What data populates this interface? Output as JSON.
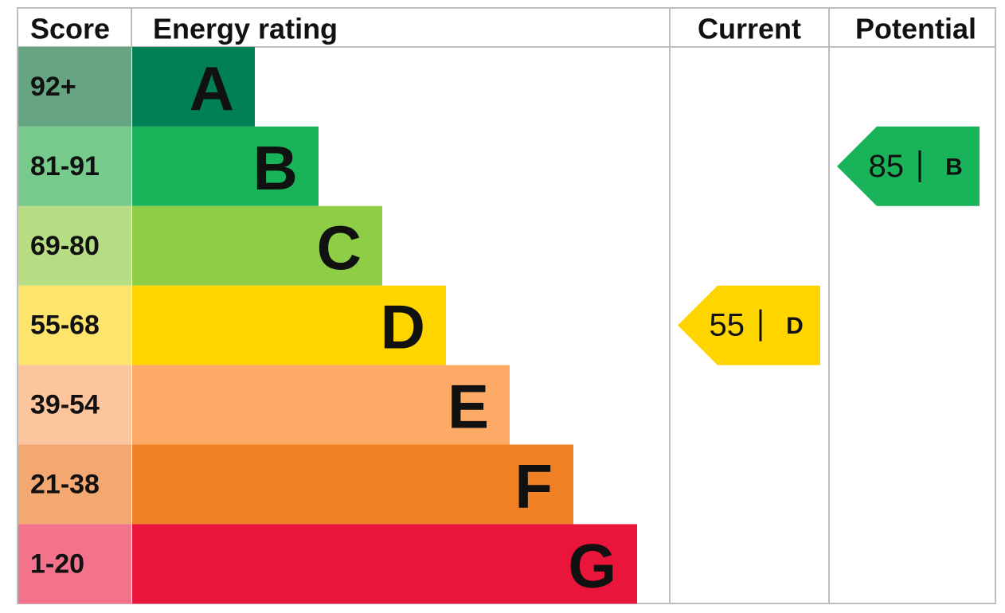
{
  "header": {
    "score": "Score",
    "energy_rating": "Energy rating",
    "current": "Current",
    "potential": "Potential"
  },
  "bands": [
    {
      "score": "92+",
      "rating": "A",
      "score_color": "#67a482",
      "bar_color": "#008054"
    },
    {
      "score": "81-91",
      "rating": "B",
      "score_color": "#75ca8c",
      "bar_color": "#19b459"
    },
    {
      "score": "69-80",
      "rating": "C",
      "score_color": "#b6dd84",
      "bar_color": "#8dce46"
    },
    {
      "score": "55-68",
      "rating": "D",
      "score_color": "#fde46c",
      "bar_color": "#ffd500"
    },
    {
      "score": "39-54",
      "rating": "E",
      "score_color": "#fdc59d",
      "bar_color": "#fcaa65"
    },
    {
      "score": "21-38",
      "rating": "F",
      "score_color": "#f3a872",
      "bar_color": "#ef8023"
    },
    {
      "score": "1-20",
      "rating": "G",
      "score_color": "#f2738b",
      "bar_color": "#e9153b"
    }
  ],
  "current": {
    "score": 55,
    "rating": "D"
  },
  "potential": {
    "score": 85,
    "rating": "B"
  }
}
